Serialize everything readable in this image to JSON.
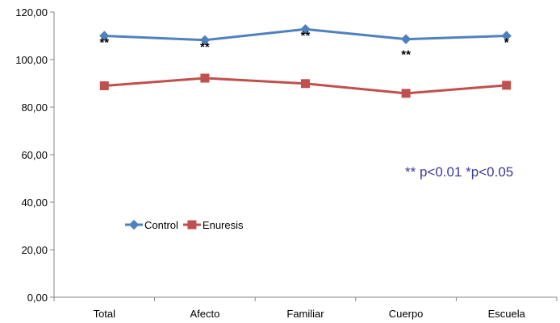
{
  "chart_data": {
    "type": "line",
    "categories": [
      "Total",
      "Afecto",
      "Familiar",
      "Cuerpo",
      "Escuela"
    ],
    "series": [
      {
        "name": "Control",
        "values": [
          110.0,
          108.2,
          112.8,
          108.6,
          110.0
        ],
        "color": "#4f81bd",
        "marker": "diamond"
      },
      {
        "name": "Enuresis",
        "values": [
          89.0,
          92.2,
          89.9,
          85.8,
          89.2
        ],
        "color": "#c0504d",
        "marker": "square"
      }
    ],
    "ylim": [
      0,
      120
    ],
    "yticks": [
      0,
      20,
      40,
      60,
      80,
      100,
      120
    ],
    "ytick_labels": [
      "0,00",
      "20,00",
      "40,00",
      "60,00",
      "80,00",
      "100,00",
      "120,00"
    ],
    "xlabel": "",
    "ylabel": "",
    "grid": false,
    "legend_placement": "left-inside",
    "significance_marks": [
      {
        "category": "Total",
        "label": "**"
      },
      {
        "category": "Afecto",
        "label": "**"
      },
      {
        "category": "Familiar",
        "label": "**"
      },
      {
        "category": "Cuerpo",
        "label": "**"
      },
      {
        "category": "Escuela",
        "label": "*"
      }
    ],
    "annotation": "** p<0.01 *p<0.05"
  }
}
